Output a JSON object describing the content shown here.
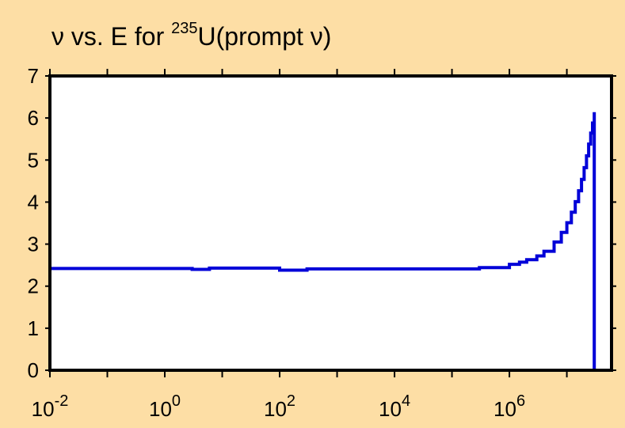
{
  "colors": {
    "background": "#FDDEA5",
    "plot_area": "#FFFFFF",
    "series": "#0000D8",
    "axis": "#000000"
  },
  "chart_data": {
    "type": "line",
    "title": {
      "prefix": "ν vs. E for ",
      "superscript": "235",
      "suffix": "U(prompt ν)"
    },
    "xlabel": "",
    "ylabel": "",
    "x_scale": "log",
    "xlim": [
      0.01,
      60000000
    ],
    "ylim": [
      0,
      7
    ],
    "grid": false,
    "legend": "none",
    "x_tick_labels": [
      {
        "base": "10",
        "exp": "-2",
        "value": 0.01
      },
      {
        "base": "10",
        "exp": "0",
        "value": 1
      },
      {
        "base": "10",
        "exp": "2",
        "value": 100
      },
      {
        "base": "10",
        "exp": "4",
        "value": 10000
      },
      {
        "base": "10",
        "exp": "6",
        "value": 1000000
      }
    ],
    "y_ticks": [
      0,
      1,
      2,
      3,
      4,
      5,
      6,
      7
    ],
    "series": [
      {
        "style": "step",
        "x": [
          0.01,
          0.01,
          1,
          3,
          6,
          100,
          300,
          5000,
          100000,
          300000,
          1000000,
          1500000,
          2000000,
          3000000,
          4000000,
          6000000,
          8000000,
          10000000,
          12000000,
          14000000,
          16000000,
          18000000,
          20000000,
          22000000,
          24000000,
          26000000,
          28000000,
          30000000,
          30000000
        ],
        "y": [
          0,
          2.42,
          2.42,
          2.4,
          2.43,
          2.38,
          2.41,
          2.41,
          2.41,
          2.44,
          2.52,
          2.57,
          2.63,
          2.72,
          2.83,
          3.05,
          3.28,
          3.51,
          3.76,
          4.01,
          4.27,
          4.54,
          4.82,
          5.1,
          5.38,
          5.64,
          5.88,
          6.14,
          0
        ]
      }
    ]
  }
}
